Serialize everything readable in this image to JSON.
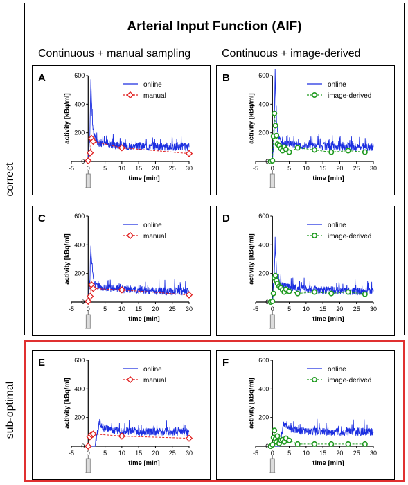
{
  "title": "Arterial Input Function (AIF)",
  "column_headers": [
    "Continuous + manual sampling",
    "Continuous + image-derived"
  ],
  "row_labels": {
    "correct": "correct",
    "sub_optimal": "sub-optimal"
  },
  "colors": {
    "online": "#1c2fe0",
    "manual": "#e02020",
    "image_derived": "#1f9a1f",
    "sub_optimal_frame": "#e03030"
  },
  "chart_data": [
    {
      "panel": "A",
      "type": "line",
      "xlabel": "time [min]",
      "ylabel": "activity [kBq/ml]",
      "xlim": [
        -5,
        30
      ],
      "ylim": [
        0,
        600
      ],
      "xticks": [
        "-5",
        "0",
        "5",
        "10",
        "15",
        "20",
        "25",
        "30"
      ],
      "yticks": [
        "0",
        "200",
        "400",
        "600"
      ],
      "legend": [
        "online",
        "manual"
      ],
      "series": [
        {
          "name": "online",
          "style": "line",
          "x": [
            -1,
            0,
            0.5,
            0.8,
            1.0,
            1.3,
            1.7,
            2.2,
            3,
            4,
            6,
            8,
            10,
            15,
            20,
            25,
            30
          ],
          "y": [
            0,
            10,
            180,
            600,
            420,
            260,
            190,
            150,
            130,
            125,
            120,
            115,
            110,
            105,
            100,
            100,
            100
          ]
        },
        {
          "name": "manual",
          "style": "dashed-marker",
          "x": [
            0,
            0.6,
            1.0,
            1.5,
            10,
            30
          ],
          "y": [
            5,
            60,
            160,
            140,
            95,
            55
          ]
        }
      ]
    },
    {
      "panel": "B",
      "type": "line",
      "xlabel": "time [min]",
      "ylabel": "activity [kBq/ml]",
      "xlim": [
        -5,
        30
      ],
      "ylim": [
        0,
        600
      ],
      "xticks": [
        "-5",
        "0",
        "5",
        "10",
        "15",
        "20",
        "25",
        "30"
      ],
      "yticks": [
        "0",
        "200",
        "400",
        "600"
      ],
      "legend": [
        "online",
        "image-derived"
      ],
      "series": [
        {
          "name": "online",
          "style": "line",
          "x": [
            -1,
            0,
            0.5,
            0.8,
            1.0,
            1.3,
            1.7,
            2.2,
            3,
            4,
            6,
            8,
            10,
            15,
            20,
            25,
            30
          ],
          "y": [
            0,
            10,
            180,
            600,
            420,
            260,
            190,
            150,
            130,
            125,
            120,
            115,
            110,
            105,
            100,
            100,
            100
          ]
        },
        {
          "name": "image-derived",
          "style": "dashed-marker",
          "x": [
            -0.5,
            0,
            0.3,
            0.6,
            0.9,
            1.2,
            1.5,
            2,
            2.5,
            3,
            3.5,
            4,
            5,
            7.5,
            12.5,
            17.5,
            22.5,
            27.5
          ],
          "y": [
            0,
            5,
            175,
            335,
            250,
            180,
            120,
            110,
            90,
            75,
            100,
            85,
            65,
            95,
            80,
            65,
            75,
            65
          ]
        }
      ]
    },
    {
      "panel": "C",
      "type": "line",
      "xlabel": "time [min]",
      "ylabel": "activity [kBq/ml]",
      "xlim": [
        -5,
        30
      ],
      "ylim": [
        0,
        600
      ],
      "xticks": [
        "-5",
        "0",
        "5",
        "10",
        "15",
        "20",
        "25",
        "30"
      ],
      "yticks": [
        "0",
        "200",
        "400",
        "600"
      ],
      "legend": [
        "online",
        "manual"
      ],
      "series": [
        {
          "name": "online",
          "style": "line",
          "x": [
            -1,
            0,
            0.5,
            0.8,
            1.0,
            1.3,
            1.7,
            2.2,
            3,
            4,
            6,
            8,
            10,
            15,
            20,
            25,
            30
          ],
          "y": [
            0,
            10,
            150,
            410,
            300,
            200,
            150,
            120,
            110,
            105,
            100,
            95,
            90,
            85,
            80,
            75,
            75
          ]
        },
        {
          "name": "manual",
          "style": "dashed-marker",
          "x": [
            0,
            0.6,
            1.0,
            1.5,
            10,
            30
          ],
          "y": [
            5,
            40,
            120,
            95,
            85,
            50
          ]
        }
      ]
    },
    {
      "panel": "D",
      "type": "line",
      "xlabel": "time [min]",
      "ylabel": "activity [kBq/ml]",
      "xlim": [
        -5,
        30
      ],
      "ylim": [
        0,
        600
      ],
      "xticks": [
        "-5",
        "0",
        "5",
        "10",
        "15",
        "20",
        "25",
        "30"
      ],
      "yticks": [
        "0",
        "200",
        "400",
        "600"
      ],
      "legend": [
        "online",
        "image-derived"
      ],
      "series": [
        {
          "name": "online",
          "style": "line",
          "x": [
            -1,
            0,
            0.5,
            0.8,
            1.0,
            1.3,
            1.7,
            2.2,
            3,
            4,
            6,
            8,
            10,
            15,
            20,
            25,
            30
          ],
          "y": [
            0,
            10,
            150,
            410,
            300,
            200,
            150,
            120,
            110,
            105,
            100,
            95,
            90,
            85,
            80,
            75,
            75
          ]
        },
        {
          "name": "image-derived",
          "style": "dashed-marker",
          "x": [
            -0.5,
            0,
            0.3,
            0.6,
            0.9,
            1.2,
            1.5,
            2,
            2.5,
            3,
            3.5,
            4,
            5,
            7.5,
            12.5,
            17.5,
            22.5,
            27.5
          ],
          "y": [
            0,
            5,
            60,
            170,
            185,
            150,
            130,
            110,
            100,
            85,
            70,
            90,
            75,
            60,
            70,
            60,
            70,
            55
          ]
        }
      ]
    },
    {
      "panel": "E",
      "type": "line",
      "xlabel": "time [min]",
      "ylabel": "activity [kBq/ml]",
      "xlim": [
        -5,
        30
      ],
      "ylim": [
        0,
        600
      ],
      "xticks": [
        "-5",
        "0",
        "5",
        "10",
        "15",
        "20",
        "25",
        "30"
      ],
      "yticks": [
        "0",
        "200",
        "400",
        "600"
      ],
      "legend": [
        "online",
        "manual"
      ],
      "series": [
        {
          "name": "online",
          "style": "line",
          "x": [
            -1,
            0,
            1,
            2,
            2.8,
            3.3,
            3.8,
            4.5,
            5.5,
            7,
            10,
            15,
            20,
            25,
            30
          ],
          "y": [
            0,
            0,
            0,
            0,
            80,
            170,
            150,
            130,
            120,
            110,
            105,
            100,
            100,
            100,
            100
          ]
        },
        {
          "name": "manual",
          "style": "dashed-marker",
          "x": [
            0,
            0.5,
            1.0,
            1.5,
            10,
            30
          ],
          "y": [
            0,
            65,
            80,
            85,
            70,
            55
          ]
        }
      ]
    },
    {
      "panel": "F",
      "type": "line",
      "xlabel": "time [min]",
      "ylabel": "activity [kBq/ml]",
      "xlim": [
        -5,
        30
      ],
      "ylim": [
        0,
        600
      ],
      "xticks": [
        "-5",
        "0",
        "5",
        "10",
        "15",
        "20",
        "25",
        "30"
      ],
      "yticks": [
        "0",
        "200",
        "400",
        "600"
      ],
      "legend": [
        "online",
        "image-derived"
      ],
      "series": [
        {
          "name": "online",
          "style": "line",
          "x": [
            -1,
            0,
            1,
            2,
            2.8,
            3.3,
            3.8,
            4.5,
            5.5,
            7,
            10,
            15,
            20,
            25,
            30
          ],
          "y": [
            0,
            0,
            0,
            0,
            80,
            170,
            150,
            130,
            120,
            110,
            105,
            100,
            100,
            100,
            100
          ]
        },
        {
          "name": "image-derived",
          "style": "dashed-marker",
          "x": [
            -0.5,
            0,
            0.3,
            0.6,
            0.9,
            1.2,
            1.5,
            2,
            2.5,
            3,
            3.5,
            4,
            5,
            7.5,
            12.5,
            17.5,
            22.5,
            27.5
          ],
          "y": [
            0,
            10,
            60,
            110,
            50,
            30,
            70,
            20,
            40,
            45,
            30,
            55,
            40,
            15,
            15,
            15,
            15,
            15
          ]
        }
      ]
    }
  ]
}
